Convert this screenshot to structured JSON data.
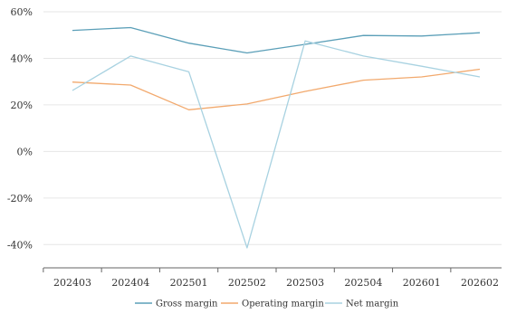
{
  "chart_data": {
    "type": "line",
    "categories": [
      "202403",
      "202404",
      "202501",
      "202502",
      "202503",
      "202504",
      "202601",
      "202602"
    ],
    "ylim": [
      -50,
      60
    ],
    "yticks": [
      -40,
      -20,
      0,
      20,
      40,
      60
    ],
    "ytick_labels": [
      "-40%",
      "-20%",
      "0%",
      "20%",
      "40%",
      "60%"
    ],
    "grid": true,
    "legend_position": "bottom",
    "series": [
      {
        "name": "Gross margin",
        "color": "#5b9fb8",
        "values": [
          52.0,
          53.2,
          46.5,
          42.3,
          46.0,
          49.8,
          49.6,
          51.0
        ]
      },
      {
        "name": "Operating margin",
        "color": "#f2a96d",
        "values": [
          29.8,
          28.5,
          17.9,
          20.4,
          25.8,
          30.6,
          32.0,
          35.3
        ]
      },
      {
        "name": "Net margin",
        "color": "#a8d2e1",
        "values": [
          26.2,
          41.0,
          34.2,
          -41.4,
          47.5,
          41.0,
          36.6,
          32.0
        ]
      }
    ]
  }
}
